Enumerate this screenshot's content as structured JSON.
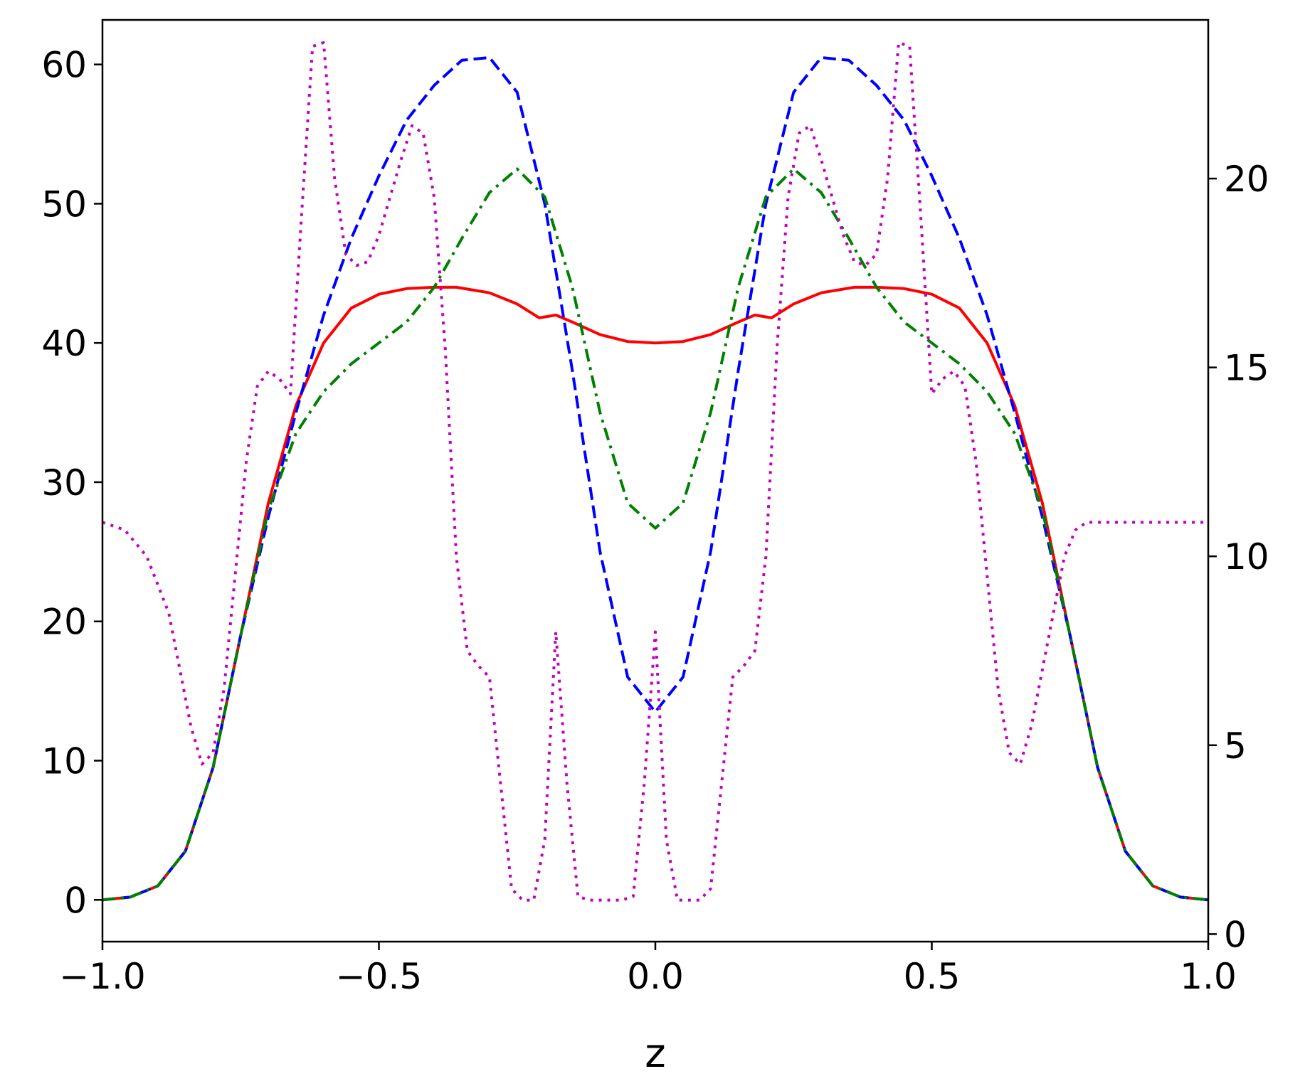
{
  "chart_data": {
    "type": "line",
    "title": "",
    "xlabel": "z",
    "ylabel": "",
    "y2label": "",
    "xlim": [
      -1.0,
      1.0
    ],
    "ylim": [
      -3,
      63.2
    ],
    "y2lim": [
      -0.2,
      24.2
    ],
    "grid": false,
    "legend": "none",
    "x_ticks": [
      -1.0,
      -0.5,
      0.0,
      0.5,
      1.0
    ],
    "x_tick_labels": [
      "−1.0",
      "−0.5",
      "0.0",
      "0.5",
      "1.0"
    ],
    "y_ticks": [
      0,
      10,
      20,
      30,
      40,
      50,
      60
    ],
    "y_tick_labels": [
      "0",
      "10",
      "20",
      "30",
      "40",
      "50",
      "60"
    ],
    "y2_ticks": [
      0,
      5,
      10,
      15,
      20
    ],
    "y2_tick_labels": [
      "0",
      "5",
      "10",
      "15",
      "20"
    ],
    "series": [
      {
        "axis": "left",
        "color": "#ff0000",
        "style": "solid",
        "x": [
          -1.0,
          -0.95,
          -0.9,
          -0.85,
          -0.8,
          -0.75,
          -0.7,
          -0.65,
          -0.6,
          -0.55,
          -0.5,
          -0.45,
          -0.4,
          -0.36,
          -0.3,
          -0.25,
          -0.21,
          -0.18,
          -0.15,
          -0.1,
          -0.05,
          0.0,
          0.05,
          0.1,
          0.15,
          0.18,
          0.21,
          0.25,
          0.3,
          0.36,
          0.4,
          0.45,
          0.5,
          0.55,
          0.6,
          0.65,
          0.7,
          0.75,
          0.8,
          0.85,
          0.9,
          0.95,
          1.0
        ],
        "y": [
          0.0,
          0.2,
          1.0,
          3.5,
          9.5,
          19.0,
          28.5,
          35.5,
          40.0,
          42.5,
          43.5,
          43.9,
          44.0,
          44.0,
          43.6,
          42.8,
          41.8,
          42.0,
          41.5,
          40.6,
          40.1,
          40.0,
          40.1,
          40.6,
          41.5,
          42.0,
          41.8,
          42.8,
          43.6,
          44.0,
          44.0,
          43.9,
          43.5,
          42.5,
          40.0,
          35.5,
          28.5,
          19.0,
          9.5,
          3.5,
          1.0,
          0.2,
          0.0
        ]
      },
      {
        "axis": "left",
        "color": "#0000ff",
        "style": "dashed",
        "x": [
          -1.0,
          -0.95,
          -0.9,
          -0.85,
          -0.8,
          -0.75,
          -0.7,
          -0.65,
          -0.6,
          -0.55,
          -0.5,
          -0.45,
          -0.4,
          -0.35,
          -0.3,
          -0.25,
          -0.2,
          -0.15,
          -0.1,
          -0.05,
          0.0,
          0.05,
          0.1,
          0.15,
          0.2,
          0.25,
          0.3,
          0.35,
          0.4,
          0.45,
          0.5,
          0.55,
          0.6,
          0.65,
          0.7,
          0.75,
          0.8,
          0.85,
          0.9,
          0.95,
          1.0
        ],
        "y": [
          0.0,
          0.2,
          1.0,
          3.5,
          9.5,
          19.0,
          27.5,
          35.0,
          42.0,
          47.5,
          52.0,
          56.0,
          58.5,
          60.3,
          60.5,
          58.0,
          50.0,
          38.0,
          25.0,
          16.0,
          13.5,
          16.0,
          25.0,
          38.0,
          50.0,
          58.0,
          60.5,
          60.3,
          58.5,
          56.0,
          52.0,
          47.5,
          42.0,
          35.0,
          27.5,
          19.0,
          9.5,
          3.5,
          1.0,
          0.2,
          0.0
        ]
      },
      {
        "axis": "left",
        "color": "#008000",
        "style": "dashdot",
        "x": [
          -1.0,
          -0.95,
          -0.9,
          -0.85,
          -0.8,
          -0.75,
          -0.7,
          -0.65,
          -0.6,
          -0.55,
          -0.5,
          -0.45,
          -0.4,
          -0.35,
          -0.3,
          -0.25,
          -0.2,
          -0.15,
          -0.1,
          -0.05,
          0.0,
          0.05,
          0.1,
          0.15,
          0.2,
          0.25,
          0.3,
          0.35,
          0.4,
          0.45,
          0.5,
          0.55,
          0.6,
          0.65,
          0.7,
          0.75,
          0.8,
          0.85,
          0.9,
          0.95,
          1.0
        ],
        "y": [
          0.0,
          0.2,
          1.0,
          3.5,
          9.5,
          19.0,
          28.0,
          33.5,
          36.5,
          38.5,
          40.0,
          41.5,
          44.0,
          47.5,
          50.8,
          52.5,
          50.5,
          44.0,
          35.0,
          28.5,
          26.7,
          28.5,
          35.0,
          44.0,
          50.5,
          52.5,
          50.8,
          47.5,
          44.0,
          41.5,
          40.0,
          38.5,
          36.5,
          33.5,
          28.0,
          19.0,
          9.5,
          3.5,
          1.0,
          0.2,
          0.0
        ]
      },
      {
        "axis": "right",
        "color": "#bf00bf",
        "style": "dotted",
        "x": [
          -1.0,
          -0.96,
          -0.92,
          -0.88,
          -0.86,
          -0.84,
          -0.82,
          -0.8,
          -0.78,
          -0.76,
          -0.74,
          -0.72,
          -0.7,
          -0.68,
          -0.66,
          -0.64,
          -0.62,
          -0.6,
          -0.58,
          -0.56,
          -0.54,
          -0.52,
          -0.5,
          -0.48,
          -0.46,
          -0.44,
          -0.42,
          -0.4,
          -0.38,
          -0.36,
          -0.34,
          -0.32,
          -0.3,
          -0.28,
          -0.26,
          -0.24,
          -0.22,
          -0.2,
          -0.18,
          -0.16,
          -0.14,
          -0.12,
          -0.1,
          -0.08,
          -0.06,
          -0.04,
          -0.02,
          0.0,
          0.02,
          0.04,
          0.06,
          0.08,
          0.1,
          0.12,
          0.14,
          0.16,
          0.18,
          0.2,
          0.22,
          0.24,
          0.26,
          0.28,
          0.3,
          0.32,
          0.34,
          0.36,
          0.38,
          0.4,
          0.42,
          0.44,
          0.46,
          0.48,
          0.5,
          0.52,
          0.54,
          0.56,
          0.58,
          0.6,
          0.62,
          0.64,
          0.66,
          0.68,
          0.7,
          0.72,
          0.74,
          0.76,
          0.78,
          0.8,
          0.82,
          0.84,
          0.86,
          0.88,
          0.92,
          0.96,
          1.0
        ],
        "y": [
          10.9,
          10.7,
          10.0,
          8.5,
          7.0,
          5.5,
          4.5,
          4.8,
          6.5,
          9.5,
          12.5,
          14.5,
          14.9,
          14.7,
          14.3,
          19.0,
          23.5,
          23.6,
          20.0,
          18.0,
          17.7,
          17.8,
          18.5,
          19.5,
          20.5,
          21.4,
          21.2,
          19.5,
          15.5,
          10.0,
          7.5,
          7.1,
          6.8,
          4.0,
          1.2,
          0.9,
          0.9,
          2.5,
          8.0,
          4.0,
          1.0,
          0.9,
          0.9,
          0.9,
          0.9,
          1.0,
          4.0,
          8.0,
          2.5,
          0.9,
          0.9,
          0.9,
          1.2,
          4.0,
          6.8,
          7.1,
          7.5,
          10.0,
          15.5,
          19.5,
          21.2,
          21.4,
          20.5,
          19.5,
          18.5,
          17.8,
          17.7,
          18.0,
          20.0,
          23.6,
          23.5,
          19.0,
          14.3,
          14.7,
          14.9,
          14.5,
          12.5,
          9.5,
          6.5,
          4.8,
          4.5,
          5.5,
          7.0,
          8.5,
          10.0,
          10.7,
          10.9,
          10.9,
          10.9,
          10.9,
          10.9,
          10.9,
          10.9,
          10.9,
          10.9
        ]
      }
    ]
  }
}
